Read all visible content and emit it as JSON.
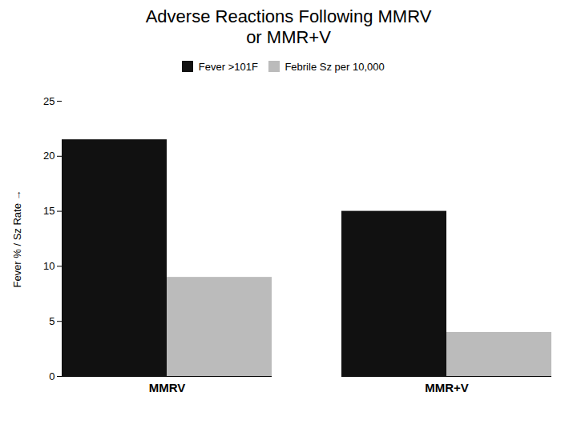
{
  "chart_data": {
    "type": "bar",
    "title": "Adverse Reactions Following MMRV\nor MMR+V",
    "ylabel": "Fever % / Sz Rate",
    "categories": [
      "MMRV",
      "MMR+V"
    ],
    "series": [
      {
        "name": "Fever >101F",
        "color": "#111111",
        "values": [
          21.5,
          15.0
        ]
      },
      {
        "name": "Febrile Sz per 10,000",
        "color": "#bbbbbb",
        "values": [
          9.0,
          4.0
        ]
      }
    ],
    "ylim": [
      0,
      25
    ],
    "yticks": [
      0,
      5,
      10,
      15,
      20,
      25
    ],
    "grid": false,
    "legend": "top"
  }
}
